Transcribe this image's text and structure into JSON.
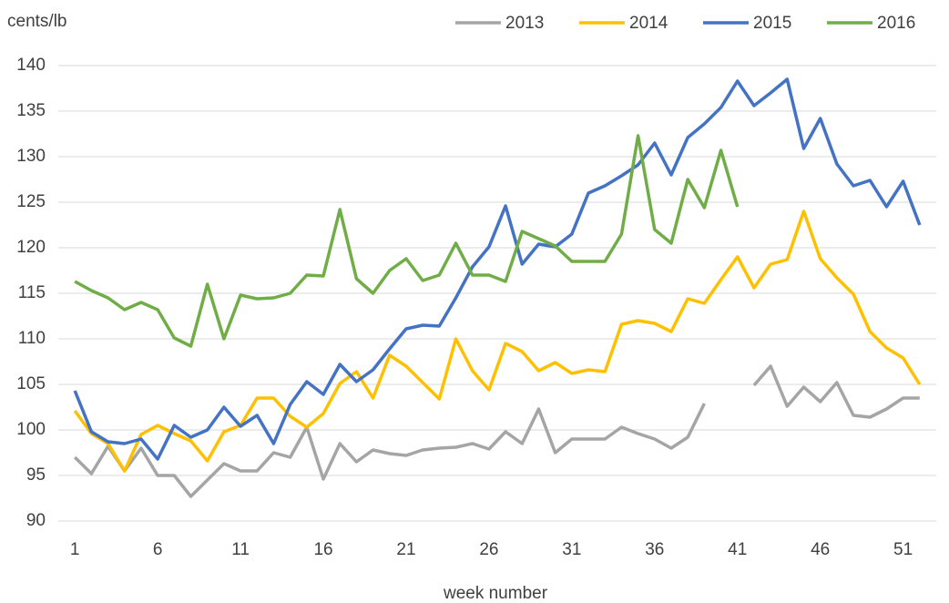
{
  "chart_data": {
    "type": "line",
    "y_label": "cents/lb",
    "x_label": "week number",
    "x": [
      1,
      2,
      3,
      4,
      5,
      6,
      7,
      8,
      9,
      10,
      11,
      12,
      13,
      14,
      15,
      16,
      17,
      18,
      19,
      20,
      21,
      22,
      23,
      24,
      25,
      26,
      27,
      28,
      29,
      30,
      31,
      32,
      33,
      34,
      35,
      36,
      37,
      38,
      39,
      40,
      41,
      42,
      43,
      44,
      45,
      46,
      47,
      48,
      49,
      50,
      51,
      52
    ],
    "xlim": [
      0,
      53
    ],
    "xticks": [
      1,
      6,
      11,
      16,
      21,
      26,
      31,
      36,
      41,
      46,
      51
    ],
    "ylim": [
      90,
      140
    ],
    "yticks": [
      90,
      95,
      100,
      105,
      110,
      115,
      120,
      125,
      130,
      135,
      140
    ],
    "grid": true,
    "legend": "top-right",
    "series": [
      {
        "name": "2013",
        "color": "#a5a5a5",
        "values": [
          97,
          95.2,
          98.2,
          95.5,
          98,
          95,
          95,
          92.7,
          94.5,
          96.3,
          95.5,
          95.5,
          97.5,
          97,
          100.3,
          94.6,
          98.5,
          96.5,
          97.8,
          97.4,
          97.2,
          97.8,
          98,
          98.1,
          98.5,
          97.9,
          99.8,
          98.5,
          102.3,
          97.5,
          99,
          99,
          99,
          100.3,
          99.6,
          99,
          98,
          99.2,
          102.9,
          null,
          null,
          104.9,
          107,
          102.6,
          104.7,
          103.1,
          105.2,
          101.6,
          101.4,
          102.3,
          103.5,
          103.5
        ]
      },
      {
        "name": "2014",
        "color": "#ffc000",
        "values": [
          102.1,
          99.6,
          98.5,
          95.5,
          99.5,
          100.5,
          99.6,
          98.8,
          96.6,
          99.8,
          100.5,
          103.5,
          103.5,
          101.5,
          100.3,
          101.8,
          105.1,
          106.4,
          103.5,
          108.2,
          107,
          105.2,
          103.4,
          110,
          106.5,
          104.4,
          109.5,
          108.6,
          106.5,
          107.4,
          106.2,
          106.6,
          106.4,
          111.6,
          112,
          111.7,
          110.8,
          114.4,
          113.9,
          116.5,
          119,
          115.6,
          118.2,
          118.7,
          124,
          118.8,
          116.7,
          114.9,
          110.8,
          109,
          107.9,
          105
        ]
      },
      {
        "name": "2015",
        "color": "#4472c4",
        "values": [
          104.3,
          99.8,
          98.7,
          98.5,
          99,
          96.8,
          100.5,
          99.2,
          100,
          102.5,
          100.4,
          101.6,
          98.5,
          102.8,
          105.3,
          103.9,
          107.2,
          105.3,
          106.6,
          108.9,
          111.1,
          111.5,
          111.4,
          114.5,
          117.9,
          120.1,
          124.6,
          118.2,
          120.4,
          120.1,
          121.5,
          126,
          126.8,
          127.9,
          129.1,
          131.5,
          128,
          132.1,
          133.6,
          135.4,
          138.3,
          135.6,
          137,
          138.5,
          130.9,
          134.2,
          129.2,
          126.8,
          127.4,
          124.5,
          127.3,
          122.5
        ]
      },
      {
        "name": "2016",
        "color": "#70ad47",
        "values": [
          116.3,
          115.3,
          114.5,
          113.2,
          114,
          113.2,
          110.1,
          109.2,
          116,
          110,
          114.8,
          114.4,
          114.5,
          115,
          117,
          116.9,
          124.2,
          116.6,
          115,
          117.5,
          118.8,
          116.4,
          117,
          120.5,
          117,
          117,
          116.3,
          121.8,
          121,
          120.2,
          118.5,
          118.5,
          118.5,
          121.5,
          132.3,
          122,
          120.5,
          127.5,
          124.4,
          130.7,
          124.5,
          null,
          null,
          null,
          null,
          null,
          null,
          null,
          null,
          null,
          null,
          null
        ]
      }
    ]
  }
}
